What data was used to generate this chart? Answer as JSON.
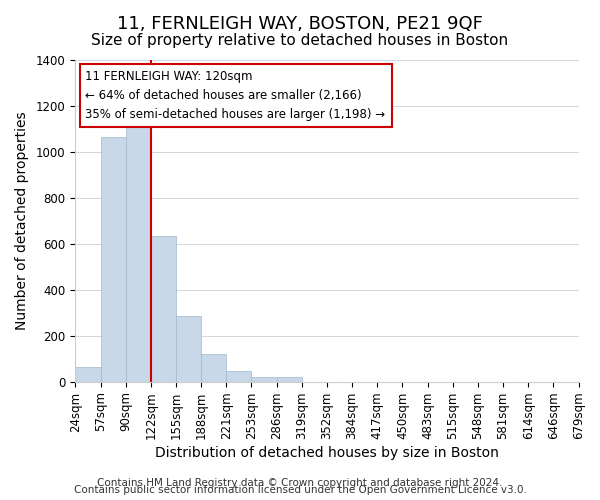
{
  "title": "11, FERNLEIGH WAY, BOSTON, PE21 9QF",
  "subtitle": "Size of property relative to detached houses in Boston",
  "xlabel": "Distribution of detached houses by size in Boston",
  "ylabel": "Number of detached properties",
  "footnote1": "Contains HM Land Registry data © Crown copyright and database right 2024.",
  "footnote2": "Contains public sector information licensed under the Open Government Licence v3.0.",
  "annotation_title": "11 FERNLEIGH WAY: 120sqm",
  "annotation_line1": "← 64% of detached houses are smaller (2,166)",
  "annotation_line2": "35% of semi-detached houses are larger (1,198) →",
  "tick_labels": [
    "24sqm",
    "57sqm",
    "90sqm",
    "122sqm",
    "155sqm",
    "188sqm",
    "221sqm",
    "253sqm",
    "286sqm",
    "319sqm",
    "352sqm",
    "384sqm",
    "417sqm",
    "450sqm",
    "483sqm",
    "515sqm",
    "548sqm",
    "581sqm",
    "614sqm",
    "646sqm",
    "679sqm"
  ],
  "bar_values": [
    65,
    1065,
    1155,
    635,
    285,
    120,
    48,
    20,
    20,
    0,
    0,
    0,
    0,
    0,
    0,
    0,
    0,
    0,
    0,
    0
  ],
  "bar_color": "#c8d8e8",
  "bar_edge_color": "#a0b8cc",
  "vline_color": "#cc0000",
  "ylim": [
    0,
    1400
  ],
  "yticks": [
    0,
    200,
    400,
    600,
    800,
    1000,
    1200,
    1400
  ],
  "annotation_box_edgecolor": "#cc0000",
  "annotation_box_facecolor": "#ffffff",
  "title_fontsize": 13,
  "subtitle_fontsize": 11,
  "axis_label_fontsize": 10,
  "tick_fontsize": 8.5,
  "footnote_fontsize": 7.5
}
